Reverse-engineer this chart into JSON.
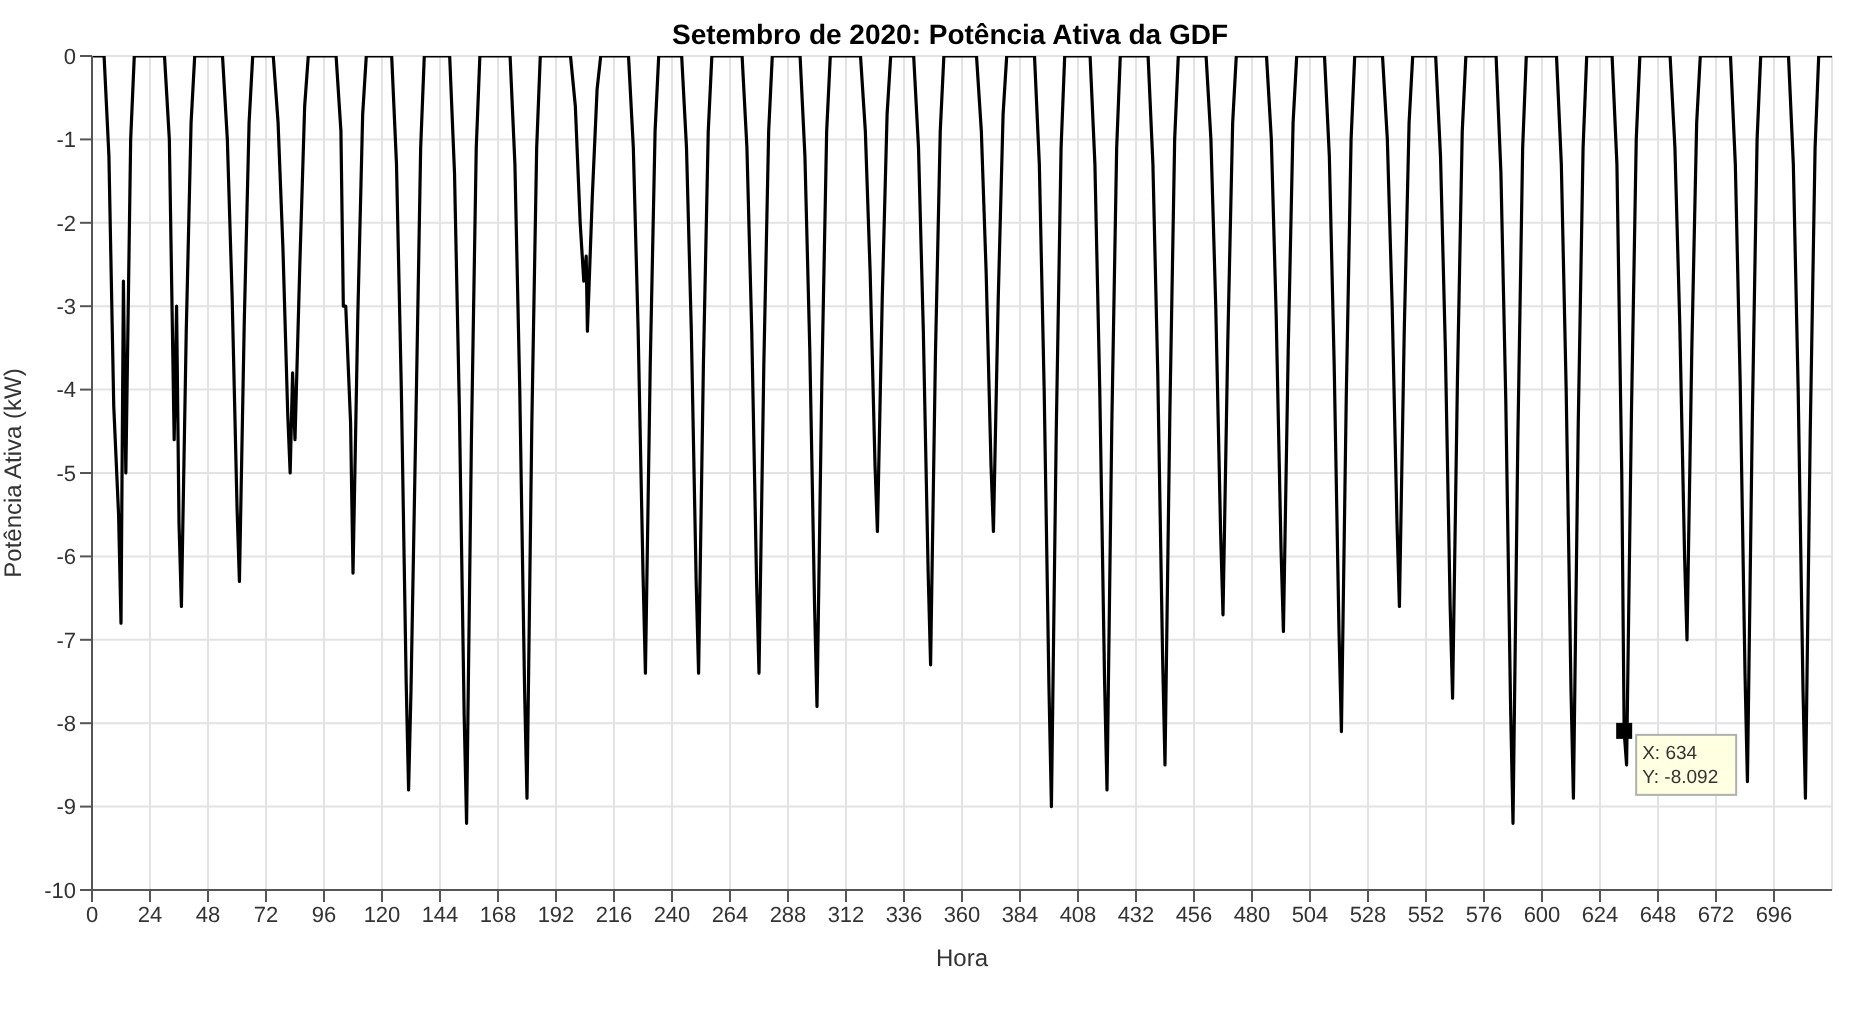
{
  "chart_data": {
    "type": "line",
    "title": "Setembro de 2020: Potência Ativa da GDF",
    "xlabel": "Hora",
    "ylabel": "Potência Ativa (kW)",
    "color": "#000000",
    "marker": "none",
    "grid": true,
    "xlim": [
      0,
      720
    ],
    "ylim": [
      -10,
      0
    ],
    "xticks": [
      0,
      24,
      48,
      72,
      96,
      120,
      144,
      168,
      192,
      216,
      240,
      264,
      288,
      312,
      336,
      360,
      384,
      408,
      432,
      456,
      480,
      504,
      528,
      552,
      576,
      600,
      624,
      648,
      672,
      696
    ],
    "yticks": [
      -10,
      -9,
      -8,
      -7,
      -6,
      -5,
      -4,
      -3,
      -2,
      -1,
      0
    ],
    "annotations": [
      {
        "text": "X: 634\nY: -8.092",
        "x": 634,
        "y": -8.092
      }
    ],
    "x": [
      0,
      5,
      7,
      9,
      11,
      12,
      13,
      14,
      16,
      17.5,
      30,
      32,
      34,
      35,
      36,
      37,
      39,
      41,
      42.5,
      54,
      56,
      58,
      60,
      61,
      63,
      65,
      66.5,
      75,
      77,
      79,
      81,
      82,
      83,
      84,
      86,
      88,
      89.5,
      101,
      103,
      104,
      105,
      107,
      108,
      110,
      112,
      113.5,
      124,
      126,
      128,
      130,
      131,
      132,
      134,
      136,
      137.5,
      148,
      150,
      152,
      154,
      155,
      157,
      159,
      160.5,
      173,
      175,
      177,
      179,
      180,
      182,
      184,
      185.5,
      198,
      200,
      202,
      203.5,
      204.5,
      205,
      207,
      209,
      210.5,
      222,
      224,
      226,
      228,
      229,
      231,
      233,
      234.5,
      244,
      246,
      248,
      250,
      251,
      253,
      255,
      256.5,
      269,
      271,
      273,
      275,
      276,
      278,
      280,
      281.5,
      293,
      295,
      297,
      299,
      300,
      302,
      304,
      305.5,
      318,
      320,
      322,
      324,
      325,
      327,
      329,
      330.5,
      340,
      342,
      344,
      346,
      347,
      349,
      351,
      352.5,
      366,
      368,
      370,
      372,
      373,
      375,
      377,
      378.5,
      390,
      392,
      394,
      396,
      397,
      399,
      401,
      402.5,
      413,
      415,
      417,
      419,
      420,
      422,
      424,
      425.5,
      437,
      439,
      441,
      443,
      444,
      446,
      448,
      449.5,
      461,
      463,
      465,
      467,
      468,
      470,
      472,
      473.5,
      486,
      488,
      490,
      492,
      493,
      495,
      497,
      498.5,
      510,
      512,
      514,
      516,
      517,
      519,
      521,
      522.5,
      534,
      536,
      538,
      540,
      541,
      543,
      545,
      546.5,
      556,
      558,
      560,
      562,
      563,
      565,
      567,
      568.5,
      581,
      583,
      585,
      587,
      588,
      590,
      592,
      593.5,
      606,
      608,
      610,
      612,
      613,
      615,
      617,
      618.5,
      629,
      631,
      633,
      634,
      635,
      637,
      639,
      640.5,
      653,
      655,
      657,
      659,
      660,
      662,
      664,
      665.5,
      678,
      680,
      682,
      684,
      685,
      687,
      689,
      690.5,
      702,
      704,
      706,
      708,
      709,
      711,
      713,
      714.5,
      720
    ],
    "values": [
      0,
      0,
      -1.2,
      -4.2,
      -5.5,
      -6.8,
      -2.7,
      -5.0,
      -1.0,
      0,
      0,
      -1,
      -4.6,
      -3,
      -5.6,
      -6.6,
      -3.3,
      -0.8,
      0,
      0,
      -1.0,
      -2.9,
      -5.4,
      -6.3,
      -3.2,
      -0.8,
      0,
      0,
      -0.8,
      -2.3,
      -4.3,
      -5.0,
      -3.8,
      -4.6,
      -2.5,
      -0.6,
      0,
      0,
      -0.9,
      -3.0,
      -3.0,
      -4.4,
      -6.2,
      -3.1,
      -0.7,
      0,
      0,
      -1.3,
      -4.0,
      -7.5,
      -8.8,
      -7.6,
      -4.4,
      -1.1,
      0,
      0,
      -1.4,
      -4.2,
      -7.9,
      -9.2,
      -4.6,
      -1.1,
      0,
      0,
      -1.3,
      -4.0,
      -7.6,
      -8.9,
      -4.4,
      -1.1,
      0,
      0,
      -0.6,
      -2.0,
      -2.7,
      -2.4,
      -3.3,
      -1.7,
      -0.4,
      0,
      0,
      -1.1,
      -3.3,
      -6.2,
      -7.4,
      -3.7,
      -0.9,
      0,
      0,
      -1.1,
      -3.3,
      -6.3,
      -7.4,
      -3.7,
      -0.9,
      0,
      0,
      -1.1,
      -3.3,
      -6.3,
      -7.4,
      -3.7,
      -0.9,
      0,
      0,
      -1.2,
      -3.5,
      -6.6,
      -7.8,
      -3.9,
      -0.9,
      0,
      0,
      -0.9,
      -2.6,
      -4.9,
      -5.7,
      -2.9,
      -0.7,
      0,
      0,
      -1.1,
      -3.3,
      -6.2,
      -7.3,
      -3.6,
      -0.9,
      0,
      0,
      -0.9,
      -2.6,
      -4.9,
      -5.7,
      -2.9,
      -0.7,
      0,
      0,
      -1.3,
      -4.0,
      -7.6,
      -9.0,
      -4.5,
      -1.1,
      0,
      0,
      -1.3,
      -4.0,
      -7.5,
      -8.8,
      -4.4,
      -1.1,
      0,
      0,
      -1.3,
      -3.8,
      -7.2,
      -8.5,
      -4.3,
      -1.0,
      0,
      0,
      -1.0,
      -3.0,
      -5.7,
      -6.7,
      -3.4,
      -0.8,
      0,
      0,
      -1.0,
      -3.1,
      -5.9,
      -6.9,
      -3.5,
      -0.8,
      0,
      0,
      -1.2,
      -3.7,
      -6.9,
      -8.1,
      -4.1,
      -1.0,
      0,
      0,
      -1.0,
      -3.0,
      -5.6,
      -6.6,
      -3.3,
      -0.8,
      0,
      0,
      -1.2,
      -3.5,
      -6.6,
      -7.7,
      -3.9,
      -0.9,
      0,
      0,
      -1.4,
      -4.1,
      -7.8,
      -9.2,
      -4.6,
      -1.1,
      0,
      0,
      -1.3,
      -4.0,
      -7.6,
      -8.9,
      -4.4,
      -1.1,
      0,
      0,
      -1.3,
      -5.0,
      -8.1,
      -8.5,
      -4.3,
      -1.0,
      0,
      0,
      -1.1,
      -3.2,
      -6.0,
      -7.0,
      -3.5,
      -0.8,
      0,
      0,
      -1.3,
      -3.9,
      -7.4,
      -8.7,
      -4.4,
      -1.0,
      0,
      0,
      -1.3,
      -4.0,
      -7.6,
      -8.9,
      -4.5,
      -1.1,
      0,
      0
    ]
  }
}
